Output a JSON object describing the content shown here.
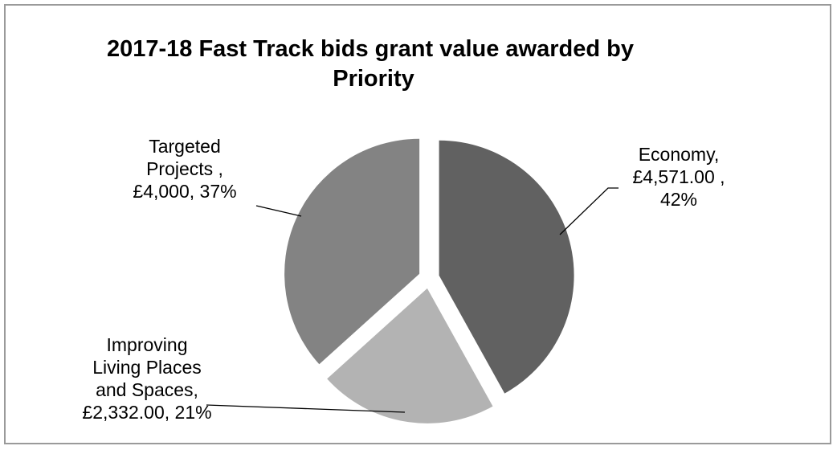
{
  "chart_data": {
    "type": "pie",
    "title_lines": [
      "2017-18 Fast Track bids grant value awarded by",
      "Priority"
    ],
    "slices": [
      {
        "category": "Economy",
        "value": 4571.0,
        "percent": 42,
        "color": "#616161",
        "label_lines": [
          "Economy,",
          "£4,571.00 ,",
          "42%"
        ]
      },
      {
        "category": "Improving Living Places and Spaces",
        "value": 2332.0,
        "percent": 21,
        "color": "#b3b3b3",
        "label_lines": [
          "Improving",
          "Living Places",
          "and Spaces,",
          "£2,332.00, 21%"
        ]
      },
      {
        "category": "Targeted Projects",
        "value": 4000,
        "percent": 37,
        "color": "#838383",
        "label_lines": [
          "Targeted",
          "Projects ,",
          "£4,000, 37%"
        ]
      }
    ],
    "legend": "none"
  }
}
